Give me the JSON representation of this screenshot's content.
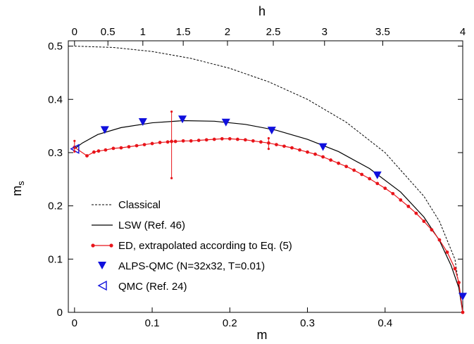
{
  "chart_data": {
    "type": "line",
    "xlabel": "m",
    "ylabel": "m",
    "ylabel_sub": "s",
    "top_xlabel": "h",
    "xlim": [
      -0.008,
      0.5
    ],
    "ylim": [
      0,
      0.51
    ],
    "x_ticks": [
      0,
      0.1,
      0.2,
      0.3,
      0.4
    ],
    "x_tick_labels": [
      "0",
      "0.1",
      "0.2",
      "0.3",
      "0.4"
    ],
    "y_ticks": [
      0,
      0.1,
      0.2,
      0.3,
      0.4,
      0.5
    ],
    "y_tick_labels": [
      "0",
      "0.1",
      "0.2",
      "0.3",
      "0.4",
      "0.5"
    ],
    "top_ticks": [
      {
        "label": "0",
        "m": 0
      },
      {
        "label": "0.5",
        "m": 0.043
      },
      {
        "label": "1",
        "m": 0.088
      },
      {
        "label": "1.5",
        "m": 0.14
      },
      {
        "label": "2",
        "m": 0.197
      },
      {
        "label": "2.5",
        "m": 0.256
      },
      {
        "label": "3",
        "m": 0.322
      },
      {
        "label": "3.5",
        "m": 0.397
      },
      {
        "label": "4",
        "m": 0.5
      }
    ],
    "legend_position": "bottom-left",
    "series": [
      {
        "name": "Classical",
        "style": "dashed",
        "color": "#000000",
        "x": [
          0,
          0.05,
          0.1,
          0.15,
          0.2,
          0.25,
          0.3,
          0.35,
          0.4,
          0.45,
          0.47,
          0.49,
          0.5
        ],
        "y": [
          0.5,
          0.4975,
          0.4899,
          0.477,
          0.4583,
          0.433,
          0.4,
          0.357,
          0.3,
          0.218,
          0.171,
          0.0995,
          0
        ]
      },
      {
        "name": "LSW (Ref. 46)",
        "style": "solid",
        "color": "#000000",
        "x": [
          0,
          0.01,
          0.03,
          0.06,
          0.1,
          0.14,
          0.18,
          0.22,
          0.26,
          0.3,
          0.34,
          0.38,
          0.42,
          0.45,
          0.47,
          0.485,
          0.495,
          0.5
        ],
        "y": [
          0.307,
          0.318,
          0.334,
          0.347,
          0.356,
          0.36,
          0.359,
          0.353,
          0.342,
          0.325,
          0.302,
          0.27,
          0.226,
          0.179,
          0.135,
          0.088,
          0.046,
          0
        ]
      },
      {
        "name": "ED, extrapolated according to Eq. (5)",
        "style": "solid-markers",
        "color": "#e8141a",
        "x": [
          0,
          0.016,
          0.025,
          0.031,
          0.04,
          0.05,
          0.06,
          0.07,
          0.08,
          0.09,
          0.1,
          0.11,
          0.12,
          0.125,
          0.13,
          0.14,
          0.15,
          0.16,
          0.17,
          0.18,
          0.19,
          0.2,
          0.21,
          0.22,
          0.23,
          0.24,
          0.25,
          0.26,
          0.27,
          0.28,
          0.29,
          0.3,
          0.31,
          0.32,
          0.33,
          0.34,
          0.35,
          0.36,
          0.37,
          0.38,
          0.39,
          0.4,
          0.41,
          0.42,
          0.43,
          0.44,
          0.45,
          0.46,
          0.47,
          0.48,
          0.49,
          0.495,
          0.5
        ],
        "y": [
          0.31,
          0.294,
          0.301,
          0.303,
          0.305,
          0.308,
          0.309,
          0.311,
          0.313,
          0.315,
          0.317,
          0.319,
          0.32,
          0.321,
          0.321,
          0.322,
          0.322,
          0.323,
          0.324,
          0.325,
          0.326,
          0.326,
          0.325,
          0.324,
          0.322,
          0.32,
          0.318,
          0.315,
          0.312,
          0.309,
          0.305,
          0.301,
          0.297,
          0.292,
          0.286,
          0.28,
          0.274,
          0.267,
          0.259,
          0.251,
          0.242,
          0.233,
          0.223,
          0.211,
          0.199,
          0.186,
          0.171,
          0.155,
          0.136,
          0.113,
          0.082,
          0.056,
          0
        ]
      },
      {
        "name": "ALPS-QMC (N=32x32, T=0.01)",
        "style": "markers-triangle-down",
        "color": "#1010dd",
        "x": [
          0.039,
          0.088,
          0.139,
          0.195,
          0.254,
          0.32,
          0.39,
          0.5
        ],
        "y": [
          0.343,
          0.358,
          0.363,
          0.357,
          0.342,
          0.311,
          0.258,
          0.03
        ]
      },
      {
        "name": "QMC (Ref. 24)",
        "style": "markers-triangle-left-open",
        "color": "#1010dd",
        "x": [
          0
        ],
        "y": [
          0.307
        ]
      }
    ],
    "error_bars": [
      {
        "x": 0.125,
        "y": 0.321,
        "low": 0.252,
        "high": 0.377
      },
      {
        "x": 0.25,
        "y": 0.317,
        "low": 0.307,
        "high": 0.327
      },
      {
        "x": 0,
        "y": 0.31,
        "low": 0.302,
        "high": 0.322
      }
    ]
  }
}
